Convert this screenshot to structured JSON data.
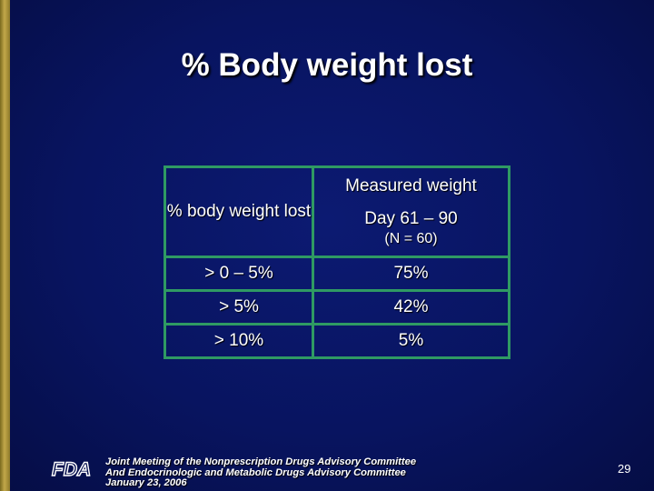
{
  "slide": {
    "title": "% Body weight lost"
  },
  "table": {
    "header_left": "% body weight lost",
    "header_right_line1": "Measured weight",
    "header_right_line2": "Day 61 – 90",
    "header_right_line3": "(N = 60)",
    "rows": [
      {
        "range": "> 0 – 5%",
        "value": "75%"
      },
      {
        "range": "> 5%",
        "value": "42%"
      },
      {
        "range": "> 10%",
        "value": "5%"
      }
    ]
  },
  "footer": {
    "line1": "Joint Meeting of the Nonprescription Drugs Advisory Committee",
    "line2": "And Endocrinologic and Metabolic Drugs Advisory Committee",
    "line3": "January 23, 2006",
    "logo_text": "FDA",
    "page_number": "29"
  },
  "colors": {
    "background": "#081460",
    "table_border": "#2f9a63",
    "accent_bar": "#c2a84a"
  }
}
